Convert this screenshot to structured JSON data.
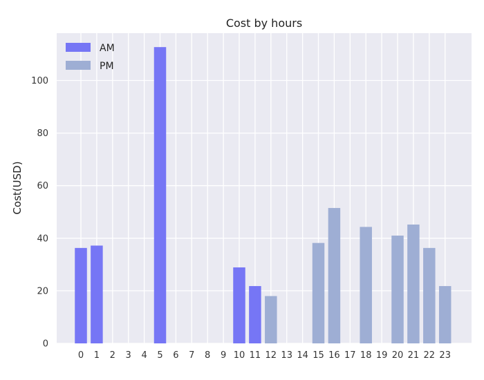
{
  "chart_data": {
    "type": "bar",
    "title": "Cost by hours",
    "xlabel": "",
    "ylabel": "Cost(USD)",
    "ylim": [
      0,
      118
    ],
    "yticks": [
      0,
      20,
      40,
      60,
      80,
      100
    ],
    "grid": true,
    "legend_placement": "top-left",
    "background_color": "#eaeaf2",
    "categories": [
      "0",
      "1",
      "2",
      "3",
      "4",
      "5",
      "6",
      "7",
      "8",
      "9",
      "10",
      "11",
      "12",
      "13",
      "14",
      "15",
      "16",
      "17",
      "18",
      "19",
      "20",
      "21",
      "22",
      "23"
    ],
    "series": [
      {
        "name": "AM",
        "color": "#7676f5",
        "points": [
          {
            "x": "0",
            "y": 36.3
          },
          {
            "x": "1",
            "y": 37.2
          },
          {
            "x": "5",
            "y": 112.7
          },
          {
            "x": "10",
            "y": 28.9
          },
          {
            "x": "11",
            "y": 21.8
          }
        ]
      },
      {
        "name": "PM",
        "color": "#9eaed4",
        "points": [
          {
            "x": "12",
            "y": 18.0
          },
          {
            "x": "15",
            "y": 38.2
          },
          {
            "x": "16",
            "y": 51.5
          },
          {
            "x": "18",
            "y": 44.3
          },
          {
            "x": "20",
            "y": 41.0
          },
          {
            "x": "21",
            "y": 45.2
          },
          {
            "x": "22",
            "y": 36.3
          },
          {
            "x": "23",
            "y": 21.8
          }
        ]
      }
    ]
  }
}
